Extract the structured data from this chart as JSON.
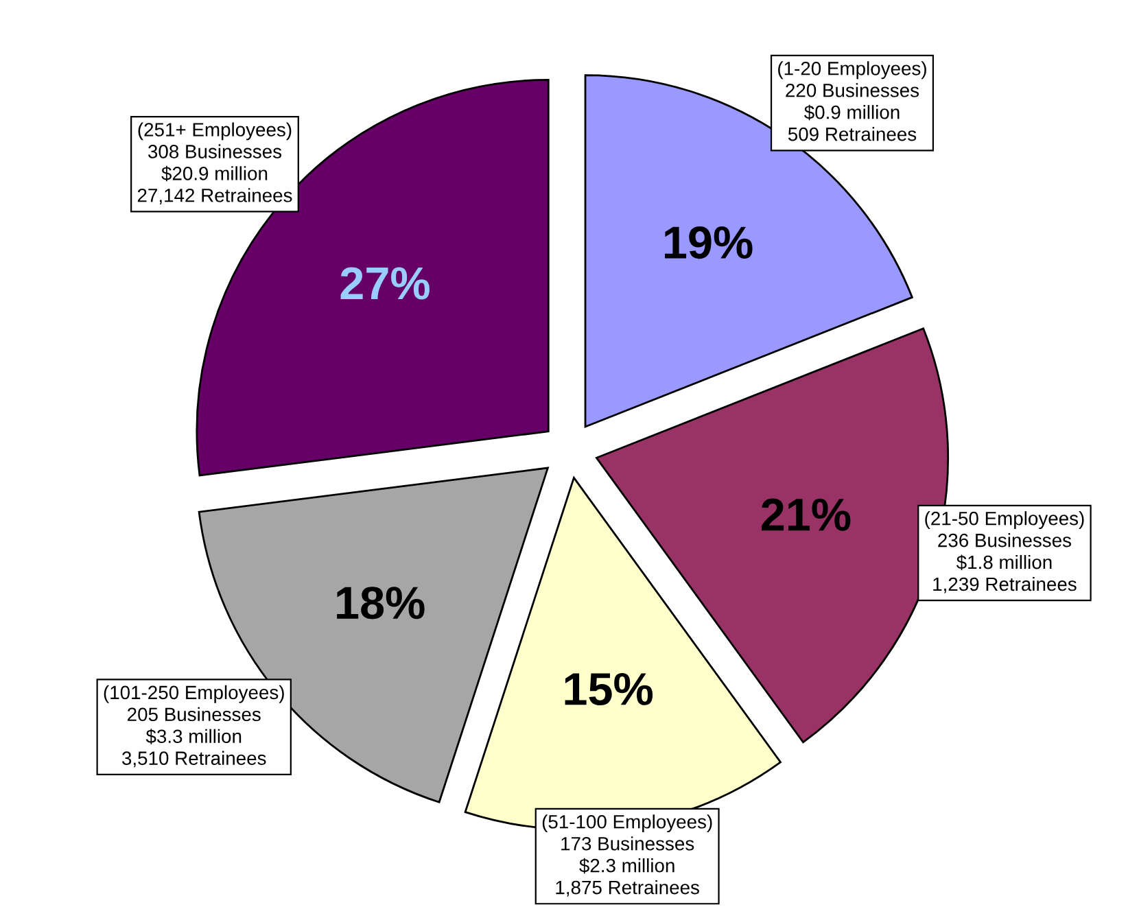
{
  "chart_data": {
    "type": "pie",
    "categories": [
      "(1-20 Employees)\n220 Businesses\n$0.9 million\n509 Retrainees",
      "(21-50 Employees)\n236 Businesses\n$1.8 million\n1,239 Retrainees",
      "(51-100 Employees)\n173 Businesses\n$2.3 million\n1,875 Retrainees",
      "(101-250 Employees)\n205 Businesses\n$3.3 million\n3,510 Retrainees",
      "(251+ Employees)\n308 Businesses\n$20.9 million\n27,142 Retrainees"
    ],
    "values": [
      19,
      21,
      15,
      18,
      27
    ],
    "value_labels": [
      "19%",
      "21%",
      "15%",
      "18%",
      "27%"
    ],
    "colors": [
      "#9999ff",
      "#993366",
      "#ffffcc",
      "#a6a6a6",
      "#660066"
    ],
    "legend": false
  }
}
